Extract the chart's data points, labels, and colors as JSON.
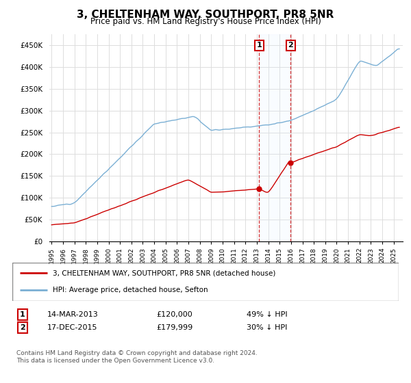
{
  "title": "3, CHELTENHAM WAY, SOUTHPORT, PR8 5NR",
  "subtitle": "Price paid vs. HM Land Registry's House Price Index (HPI)",
  "legend_line1": "3, CHELTENHAM WAY, SOUTHPORT, PR8 5NR (detached house)",
  "legend_line2": "HPI: Average price, detached house, Sefton",
  "footer": "Contains HM Land Registry data © Crown copyright and database right 2024.\nThis data is licensed under the Open Government Licence v3.0.",
  "sale1_date": "14-MAR-2013",
  "sale1_price": 120000,
  "sale1_price_str": "£120,000",
  "sale1_label": "49% ↓ HPI",
  "sale1_year": 2013.2,
  "sale2_date": "17-DEC-2015",
  "sale2_price": 179999,
  "sale2_price_str": "£179,999",
  "sale2_label": "30% ↓ HPI",
  "sale2_year": 2015.97,
  "red_color": "#cc0000",
  "blue_color": "#7aafd4",
  "span_color": "#ddeeff",
  "annotation_box_color": "#cc0000",
  "ylim": [
    0,
    475000
  ],
  "yticks": [
    0,
    50000,
    100000,
    150000,
    200000,
    250000,
    300000,
    350000,
    400000,
    450000
  ],
  "xlim_start": 1994.8,
  "xlim_end": 2025.8
}
